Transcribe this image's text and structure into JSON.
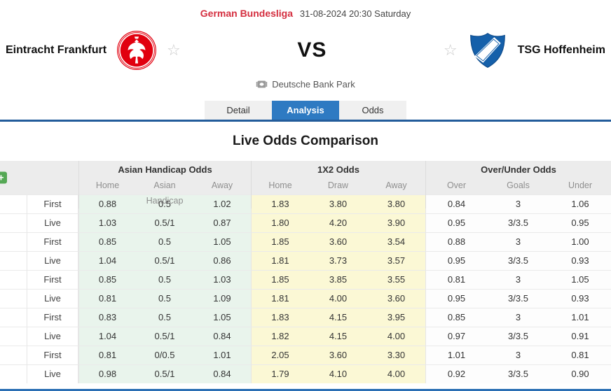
{
  "match_header": {
    "league": "German Bundesliga",
    "kickoff": "31-08-2024 20:30 Saturday",
    "home_team": "Eintracht Frankfurt",
    "vs_label": "VS",
    "away_team": "TSG Hoffenheim",
    "venue": "Deutsche Bank Park"
  },
  "tabs": [
    {
      "label": "Detail",
      "active": false
    },
    {
      "label": "Analysis",
      "active": true
    },
    {
      "label": "Odds",
      "active": false
    }
  ],
  "analysis": {
    "section_title": "Live Odds Comparison",
    "table": {
      "add_button_label": "+",
      "groups": [
        {
          "title": "Asian Handicap Odds",
          "columns": [
            "Home",
            "Asian Handicap",
            "Away"
          ]
        },
        {
          "title": "1X2 Odds",
          "columns": [
            "Home",
            "Draw",
            "Away"
          ]
        },
        {
          "title": "Over/Under Odds",
          "columns": [
            "Over",
            "Goals",
            "Under"
          ]
        }
      ],
      "rows": [
        {
          "stage": "First",
          "ah": [
            "0.88",
            "0.5",
            "1.02"
          ],
          "x12": [
            "1.83",
            "3.80",
            "3.80"
          ],
          "ou": [
            "0.84",
            "3",
            "1.06"
          ]
        },
        {
          "stage": "Live",
          "ah": [
            "1.03",
            "0.5/1",
            "0.87"
          ],
          "x12": [
            "1.80",
            "4.20",
            "3.90"
          ],
          "ou": [
            "0.95",
            "3/3.5",
            "0.95"
          ]
        },
        {
          "stage": "First",
          "ah": [
            "0.85",
            "0.5",
            "1.05"
          ],
          "x12": [
            "1.85",
            "3.60",
            "3.54"
          ],
          "ou": [
            "0.88",
            "3",
            "1.00"
          ]
        },
        {
          "stage": "Live",
          "ah": [
            "1.04",
            "0.5/1",
            "0.86"
          ],
          "x12": [
            "1.81",
            "3.73",
            "3.57"
          ],
          "ou": [
            "0.95",
            "3/3.5",
            "0.93"
          ]
        },
        {
          "stage": "First",
          "ah": [
            "0.85",
            "0.5",
            "1.03"
          ],
          "x12": [
            "1.85",
            "3.85",
            "3.55"
          ],
          "ou": [
            "0.81",
            "3",
            "1.05"
          ]
        },
        {
          "stage": "Live",
          "ah": [
            "0.81",
            "0.5",
            "1.09"
          ],
          "x12": [
            "1.81",
            "4.00",
            "3.60"
          ],
          "ou": [
            "0.95",
            "3/3.5",
            "0.93"
          ]
        },
        {
          "stage": "First",
          "ah": [
            "0.83",
            "0.5",
            "1.05"
          ],
          "x12": [
            "1.83",
            "4.15",
            "3.95"
          ],
          "ou": [
            "0.85",
            "3",
            "1.01"
          ]
        },
        {
          "stage": "Live",
          "ah": [
            "1.04",
            "0.5/1",
            "0.84"
          ],
          "x12": [
            "1.82",
            "4.15",
            "4.00"
          ],
          "ou": [
            "0.97",
            "3/3.5",
            "0.91"
          ]
        },
        {
          "stage": "First",
          "ah": [
            "0.81",
            "0/0.5",
            "1.01"
          ],
          "x12": [
            "2.05",
            "3.60",
            "3.30"
          ],
          "ou": [
            "1.01",
            "3",
            "0.81"
          ]
        },
        {
          "stage": "Live",
          "ah": [
            "0.98",
            "0.5/1",
            "0.84"
          ],
          "x12": [
            "1.79",
            "4.10",
            "4.00"
          ],
          "ou": [
            "0.92",
            "3/3.5",
            "0.90"
          ]
        }
      ]
    }
  },
  "colors": {
    "league_red": "#d42e3f",
    "accent_blue": "#2e7ac2",
    "tab_underline_blue": "#235c9b",
    "frankfurt_red": "#e1000f",
    "hoffenheim_blue": "#1560aa",
    "asian_handicap_tint": "#e9f4ec",
    "x12_tint": "#fbf8d5",
    "add_button_green": "#55a855"
  }
}
